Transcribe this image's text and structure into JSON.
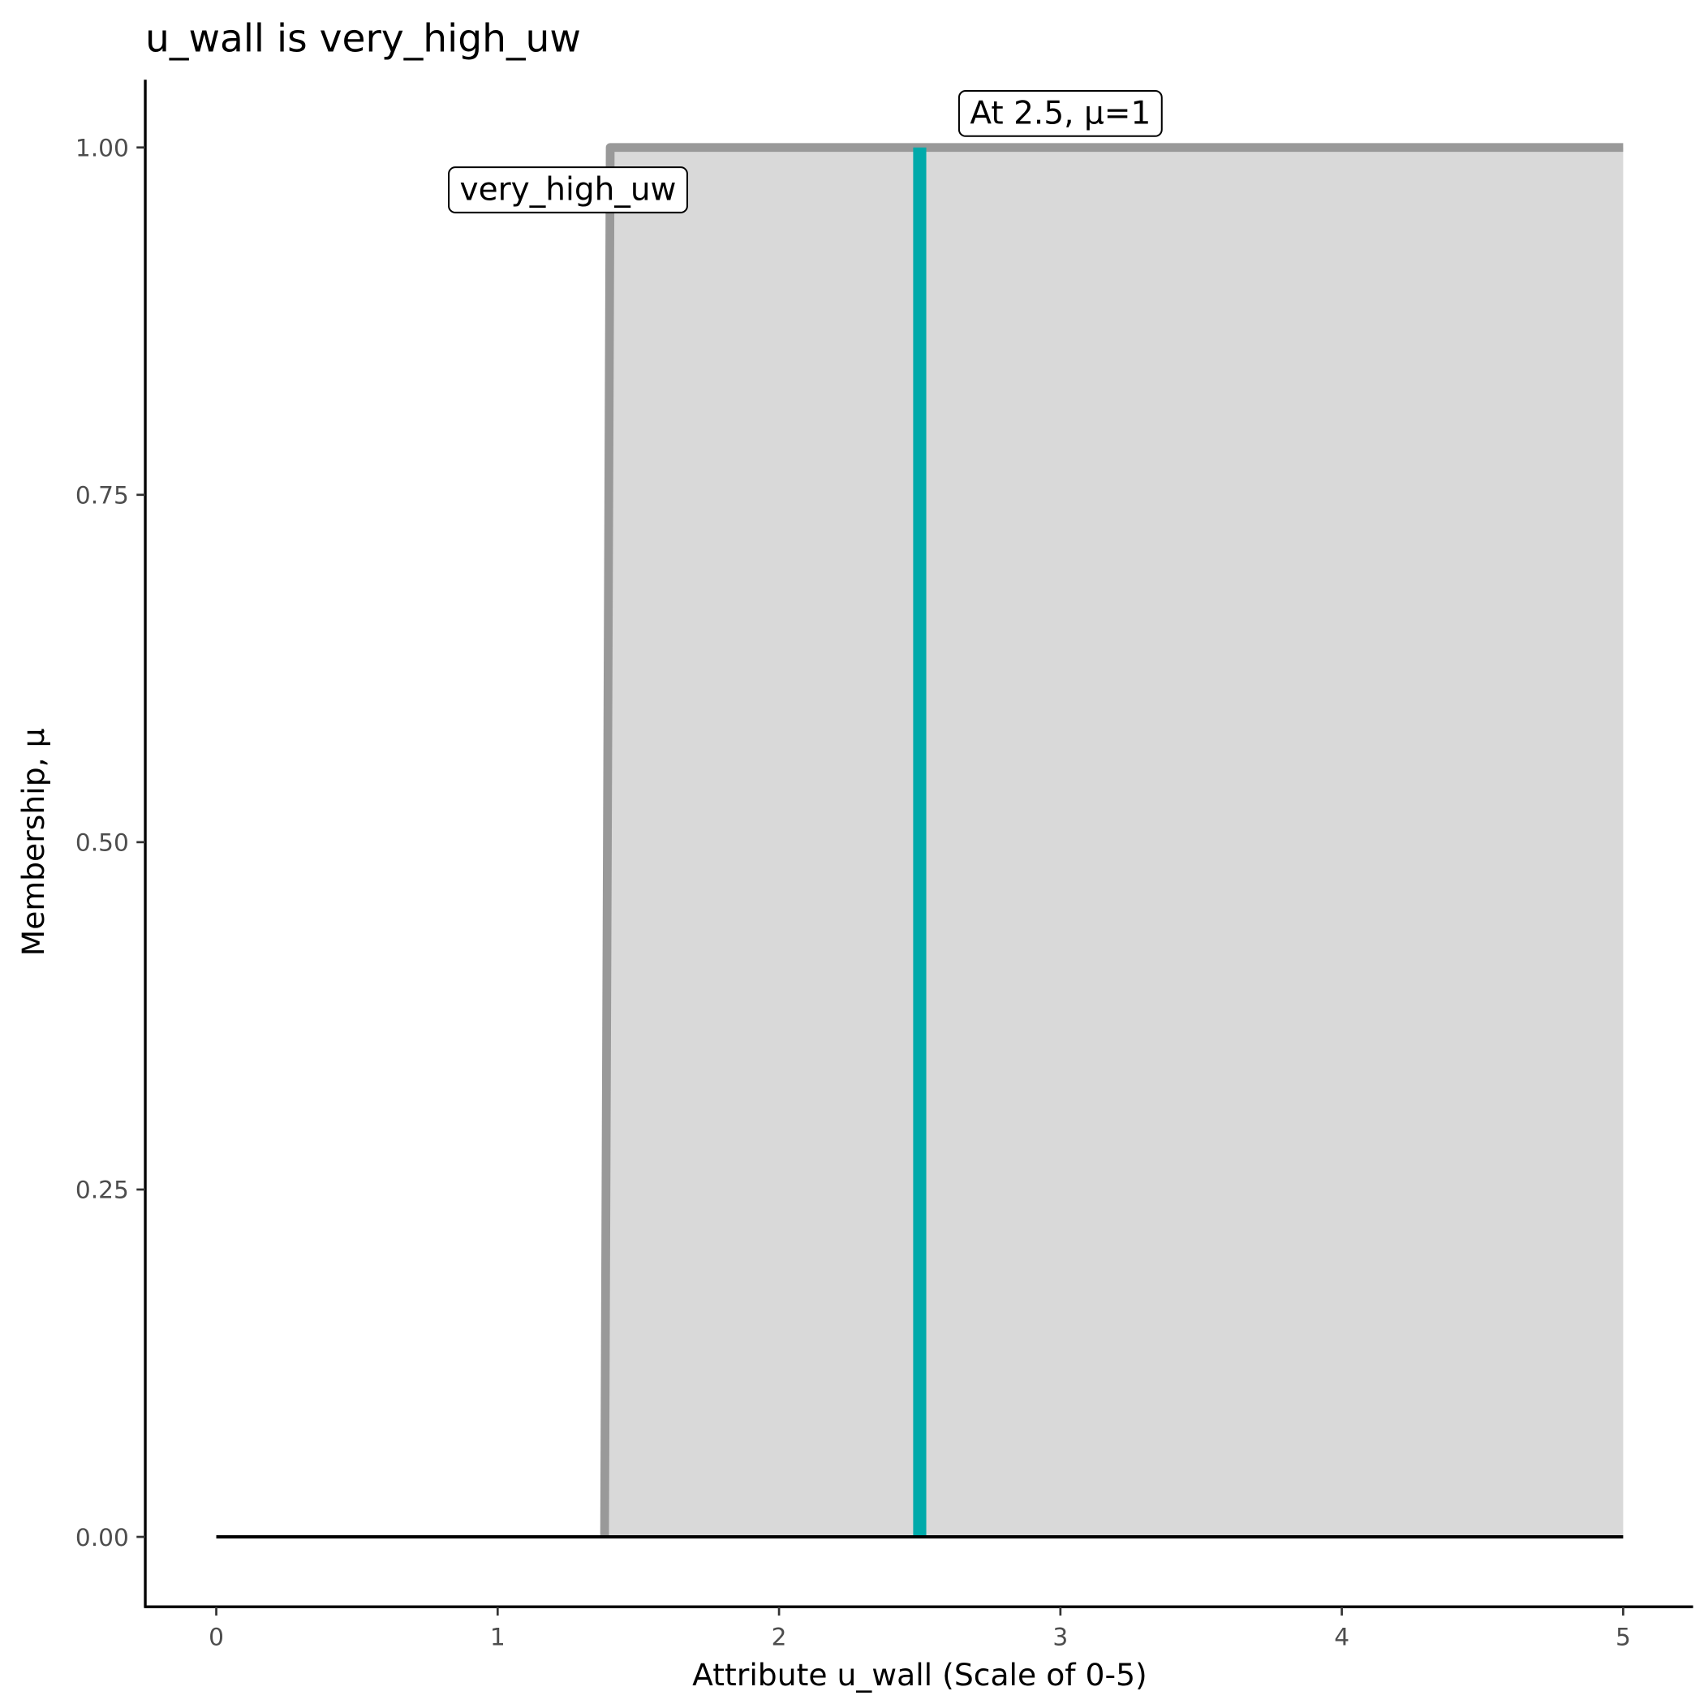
{
  "chart_data": {
    "type": "area",
    "title": "u_wall is very_high_uw",
    "xlabel": "Attribute u_wall (Scale of 0-5)",
    "ylabel": "Membership, μ",
    "xlim": [
      -0.25,
      5.25
    ],
    "ylim": [
      -0.05,
      1.05
    ],
    "x_ticks": [
      "0",
      "1",
      "2",
      "3",
      "4",
      "5"
    ],
    "y_ticks": [
      "0.00",
      "0.25",
      "0.50",
      "0.75",
      "1.00"
    ],
    "grid": false,
    "series": [
      {
        "name": "very_high_uw",
        "x": [
          1.38,
          1.4,
          5
        ],
        "y": [
          0,
          1,
          1
        ],
        "fill": "#d9d9d9",
        "line_color": "#999999"
      }
    ],
    "baseline": {
      "x": [
        0,
        5
      ],
      "y": [
        0,
        0
      ],
      "color": "#000000"
    },
    "marker_line": {
      "x": 2.5,
      "y": [
        0,
        1
      ],
      "color": "#00aaaa"
    },
    "annotations": [
      {
        "text": "very_high_uw",
        "x": 1.25,
        "y": 0.97
      },
      {
        "text": "At 2.5, μ=1",
        "x": 3.0,
        "y": 1.025
      }
    ]
  }
}
